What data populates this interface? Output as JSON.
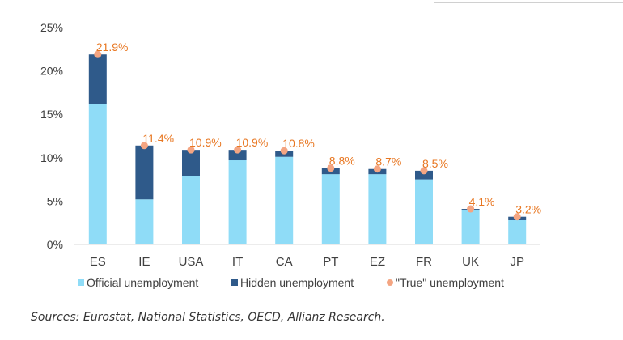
{
  "chart_data": {
    "type": "bar",
    "stacked": true,
    "categories": [
      "ES",
      "IE",
      "USA",
      "IT",
      "CA",
      "PT",
      "EZ",
      "FR",
      "UK",
      "JP"
    ],
    "series": [
      {
        "name": "Official unemployment",
        "color": "#8fdcf7",
        "values": [
          16.2,
          5.2,
          7.9,
          9.7,
          10.1,
          8.1,
          8.1,
          7.5,
          4.0,
          2.8
        ]
      },
      {
        "name": "Hidden unemployment",
        "color": "#2f5a8a",
        "values": [
          5.7,
          6.2,
          3.0,
          1.2,
          0.7,
          0.7,
          0.6,
          1.0,
          0.1,
          0.4
        ]
      }
    ],
    "markers": {
      "name": "\"True\" unemployment",
      "color": "#f4a582",
      "values": [
        21.9,
        11.4,
        10.9,
        10.9,
        10.8,
        8.8,
        8.7,
        8.5,
        4.1,
        3.2
      ],
      "labels": [
        "21.9%",
        "11.4%",
        "10.9%",
        "10.9%",
        "10.8%",
        "8.8%",
        "8.7%",
        "8.5%",
        "4.1%",
        "3.2%"
      ],
      "label_color": "#e87722"
    },
    "y_ticks": [
      0,
      5,
      10,
      15,
      20,
      25
    ],
    "y_tick_labels": [
      "0%",
      "5%",
      "10%",
      "15%",
      "20%",
      "25%"
    ],
    "ylim": [
      0,
      25
    ],
    "title": "",
    "xlabel": "",
    "ylabel": "",
    "legend_position": "bottom",
    "grid": false
  },
  "source": "Sources:  Eurostat, National Statistics, OECD, Allianz Research."
}
